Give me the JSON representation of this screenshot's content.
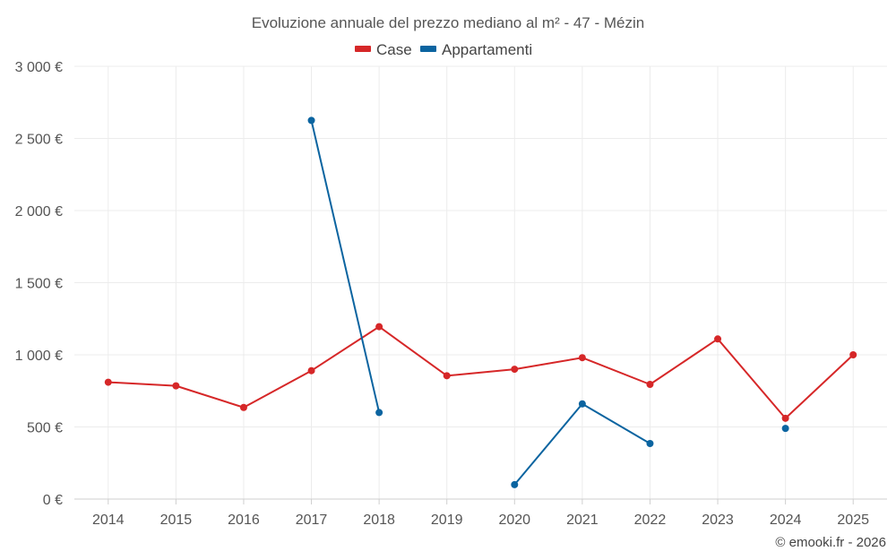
{
  "chart_data": {
    "type": "line",
    "title": "Evoluzione annuale del prezzo mediano al m² - 47 - Mézin",
    "categories": [
      "2014",
      "2015",
      "2016",
      "2017",
      "2018",
      "2019",
      "2020",
      "2021",
      "2022",
      "2023",
      "2024",
      "2025"
    ],
    "ylim": [
      0,
      3000
    ],
    "yticks": [
      0,
      500,
      1000,
      1500,
      2000,
      2500,
      3000
    ],
    "ytick_labels": [
      "0 €",
      "500 €",
      "1 000 €",
      "1 500 €",
      "2 000 €",
      "2 500 €",
      "3 000 €"
    ],
    "legend_position": "top-center",
    "grid": true,
    "series": [
      {
        "name": "Case",
        "color": "#d62728",
        "values": [
          810,
          785,
          635,
          890,
          1195,
          855,
          900,
          980,
          795,
          1110,
          560,
          1000
        ]
      },
      {
        "name": "Appartamenti",
        "color": "#0b64a0",
        "values": [
          null,
          null,
          null,
          2625,
          600,
          null,
          100,
          660,
          385,
          null,
          490,
          null
        ]
      }
    ]
  },
  "credit": "© emooki.fr - 2026"
}
